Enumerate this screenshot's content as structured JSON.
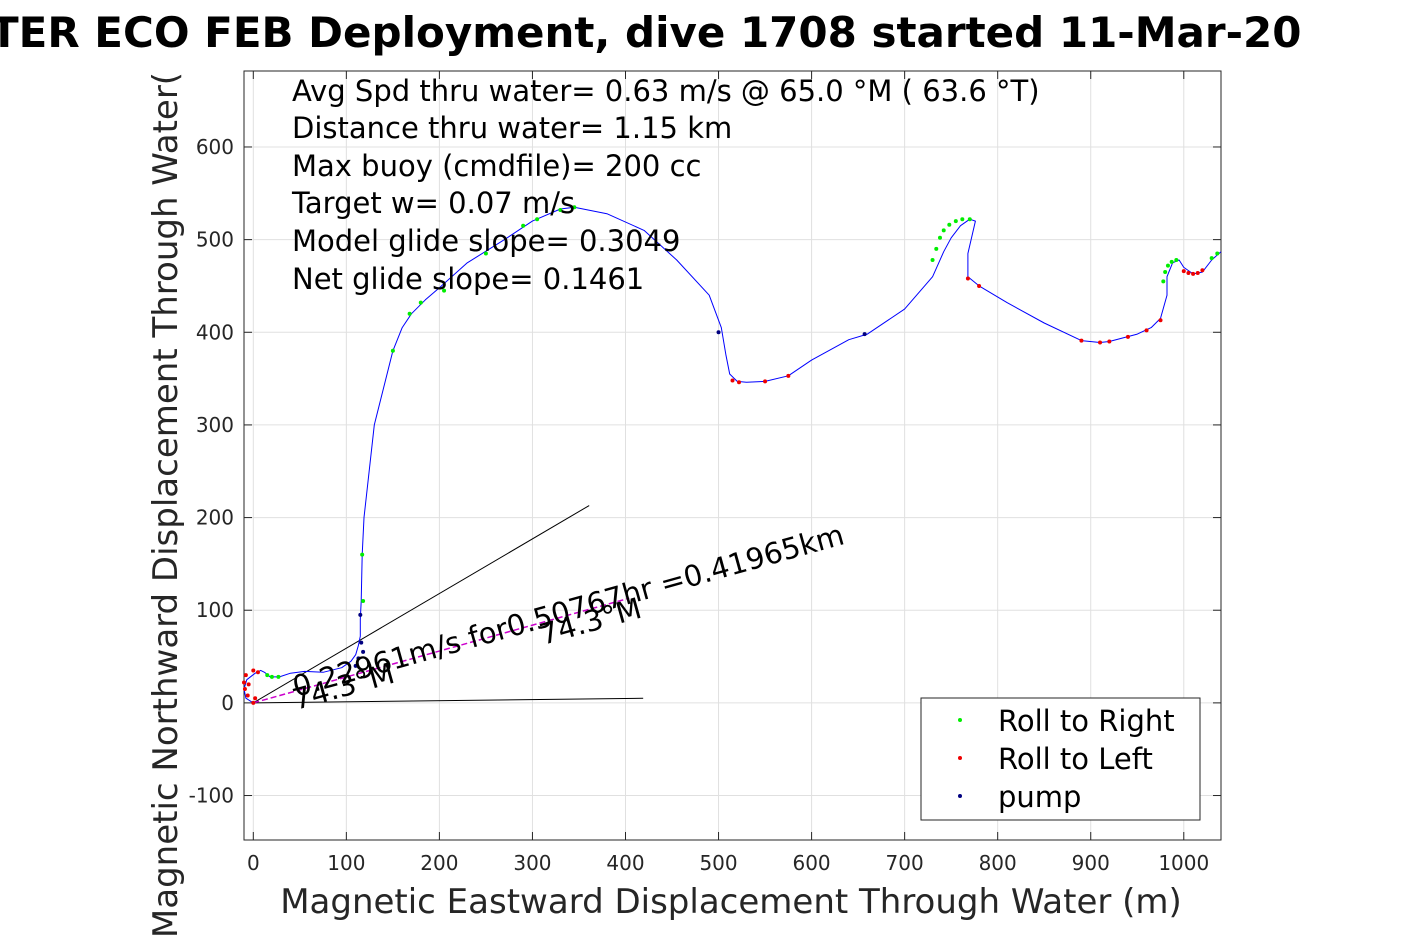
{
  "chart_data": {
    "type": "line",
    "title": "TER ECO FEB Deployment, dive 1708 started 11-Mar-20",
    "xlabel": "Magnetic Eastward Displacement Through Water (m)",
    "ylabel": "Magnetic Northward Displacement Through Water(",
    "xlim": [
      -10,
      1040
    ],
    "ylim": [
      -148,
      682
    ],
    "xticks": [
      0,
      100,
      200,
      300,
      400,
      500,
      600,
      700,
      800,
      900,
      1000
    ],
    "yticks": [
      -100,
      0,
      100,
      200,
      300,
      400,
      500,
      600
    ],
    "grid": true,
    "legend_position": "bottom-right",
    "colors": {
      "track": "#0000ff",
      "roll_right": "#00ee00",
      "roll_left": "#ee0000",
      "pump": "#000080",
      "current": "#cc00cc",
      "reference": "#000000"
    },
    "annotations": [
      "Avg Spd thru water=  0.63 m/s @  65.0 °M ( 63.6 °T)",
      "Distance thru water=  1.15 km",
      "Max buoy (cmdfile)= 200 cc",
      "Target w= 0.07 m/s",
      "Model glide slope= 0.3049",
      "Net glide slope= 0.1461"
    ],
    "current_label": "0.22961m/s for0.50767hr =0.41965km",
    "heading_labels": [
      "74.3°M",
      "74.3°M"
    ],
    "track": {
      "x": [
        0,
        -8,
        -10,
        -7,
        2,
        8,
        12,
        18,
        28,
        40,
        55,
        75,
        95,
        105,
        110,
        113,
        115,
        115,
        116,
        117,
        119,
        130,
        150,
        160,
        170,
        185,
        200,
        230,
        270,
        300,
        330,
        345,
        380,
        420,
        455,
        490,
        503,
        508,
        512,
        520,
        530,
        550,
        575,
        600,
        640,
        660,
        700,
        730,
        742,
        750,
        760,
        770,
        776,
        768,
        768,
        780,
        810,
        850,
        890,
        910,
        920,
        950,
        965,
        975,
        982,
        982,
        988,
        995,
        1000,
        1010,
        1020,
        1030,
        1040
      ],
      "y": [
        0,
        5,
        15,
        25,
        32,
        35,
        33,
        28,
        28,
        32,
        34,
        33,
        38,
        45,
        52,
        62,
        72,
        90,
        110,
        160,
        200,
        300,
        380,
        405,
        420,
        435,
        448,
        475,
        500,
        520,
        533,
        535,
        528,
        510,
        478,
        440,
        405,
        375,
        355,
        347,
        346,
        347,
        353,
        370,
        392,
        398,
        425,
        460,
        487,
        502,
        515,
        522,
        520,
        485,
        460,
        450,
        432,
        410,
        391,
        389,
        390,
        398,
        405,
        415,
        440,
        460,
        475,
        478,
        470,
        463,
        465,
        478,
        487
      ]
    },
    "roll_right": {
      "x": [
        117,
        118,
        150,
        168,
        180,
        205,
        250,
        290,
        305,
        330,
        345,
        730,
        734,
        738,
        742,
        748,
        755,
        762,
        770,
        20,
        15,
        27,
        978,
        980,
        983,
        987,
        992,
        1030,
        1036
      ],
      "y": [
        160,
        110,
        380,
        420,
        432,
        445,
        485,
        515,
        522,
        532,
        535,
        478,
        490,
        502,
        510,
        516,
        520,
        522,
        522,
        28,
        30,
        28,
        455,
        465,
        472,
        476,
        478,
        480,
        485
      ]
    },
    "roll_left": {
      "x": [
        0,
        -6,
        -9,
        -10,
        -8,
        0,
        5,
        2,
        -5,
        515,
        522,
        550,
        575,
        768,
        780,
        890,
        910,
        920,
        940,
        960,
        975,
        1000,
        1005,
        1010,
        1015,
        1020
      ],
      "y": [
        0,
        8,
        15,
        22,
        30,
        35,
        33,
        5,
        20,
        348,
        346,
        347,
        353,
        458,
        450,
        391,
        389,
        390,
        395,
        402,
        413,
        466,
        464,
        463,
        464,
        467
      ]
    },
    "pump": {
      "x": [
        115,
        116,
        118,
        657,
        500,
        110,
        113
      ],
      "y": [
        95,
        65,
        55,
        398,
        400,
        40,
        48
      ]
    },
    "current_vector": {
      "x": [
        0,
        404
      ],
      "y": [
        0,
        113
      ]
    },
    "reference_lines": [
      {
        "x": [
          0,
          361
        ],
        "y": [
          0,
          213
        ]
      },
      {
        "x": [
          0,
          419
        ],
        "y": [
          0,
          5
        ]
      }
    ]
  },
  "legend": {
    "items": [
      {
        "label": "Roll to Right",
        "color": "#00ee00"
      },
      {
        "label": "Roll to Left",
        "color": "#ee0000"
      },
      {
        "label": "pump",
        "color": "#000080"
      }
    ]
  }
}
